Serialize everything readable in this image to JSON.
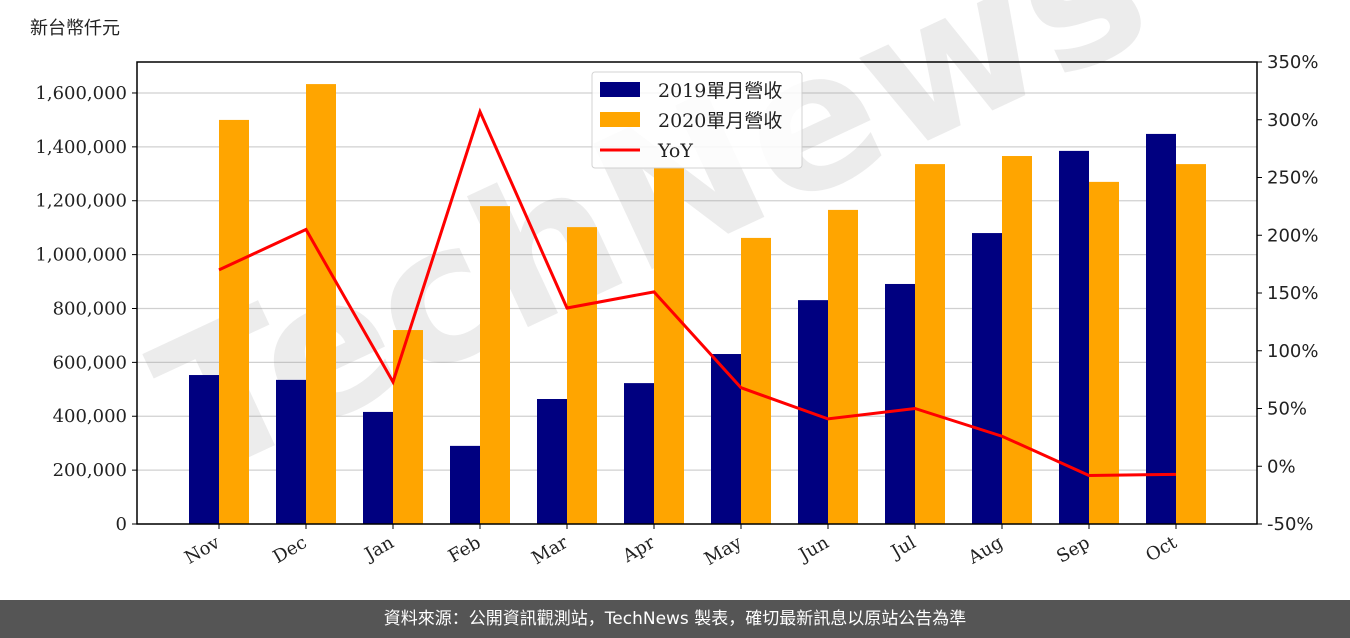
{
  "chart_data": {
    "type": "bar+line",
    "ylabel": "新台幣仟元",
    "categories": [
      "Nov",
      "Dec",
      "Jan",
      "Feb",
      "Mar",
      "Apr",
      "May",
      "Jun",
      "Jul",
      "Aug",
      "Sep",
      "Oct"
    ],
    "series": [
      {
        "name": "2019單月營收",
        "type": "bar",
        "color": "#000080",
        "axis": "left",
        "values": [
          553000,
          535000,
          416000,
          290000,
          464000,
          523000,
          631000,
          831000,
          891000,
          1080000,
          1385000,
          1448000
        ]
      },
      {
        "name": "2020單月營收",
        "type": "bar",
        "color": "#FFA500",
        "axis": "left",
        "values": [
          1500000,
          1633000,
          720000,
          1180000,
          1102000,
          1322000,
          1062000,
          1166000,
          1336000,
          1366000,
          1270000,
          1336000
        ]
      },
      {
        "name": "YoY",
        "type": "line",
        "color": "#FF0000",
        "axis": "right",
        "values": [
          170,
          205,
          73,
          307,
          137,
          151,
          68,
          41,
          50,
          26,
          -8,
          -7
        ]
      }
    ],
    "ylim_left": [
      0,
      1715000
    ],
    "yticks_left": [
      "0",
      "200,000",
      "400,000",
      "600,000",
      "800,000",
      "1,000,000",
      "1,200,000",
      "1,400,000",
      "1,600,000"
    ],
    "ylim_right": [
      -50,
      350
    ],
    "yticks_right": [
      "-50%",
      "0%",
      "50%",
      "100%",
      "150%",
      "200%",
      "250%",
      "300%",
      "350%"
    ],
    "grid": true,
    "legend": "top-center"
  },
  "watermark": "TechNews",
  "footer": "資料來源：公開資訊觀測站，TechNews 製表，確切最新訊息以原站公告為準"
}
